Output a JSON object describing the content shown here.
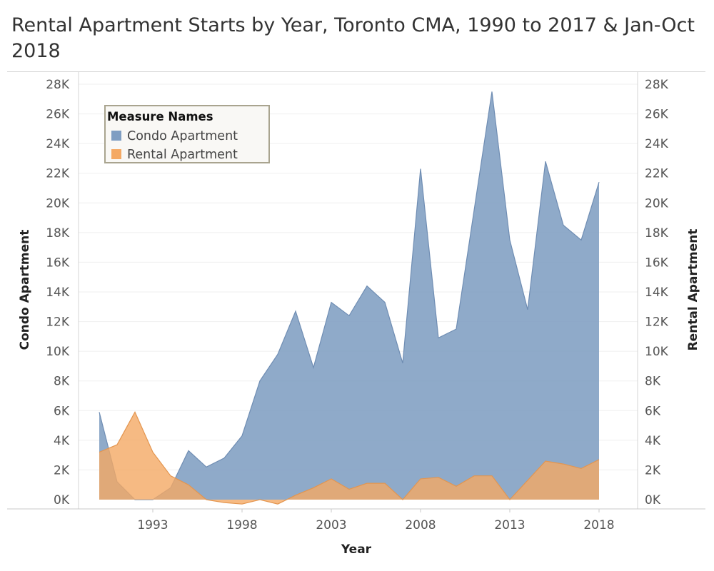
{
  "title": "Rental Apartment Starts by Year, Toronto CMA, 1990 to 2017 & Jan-Oct 2018",
  "chart_data": {
    "type": "area",
    "title": "Rental Apartment Starts by Year, Toronto CMA, 1990 to 2017 & Jan-Oct 2018",
    "xlabel": "Year",
    "ylabel_left": "Condo Apartment",
    "ylabel_right": "Rental Apartment",
    "x": [
      1990,
      1991,
      1992,
      1993,
      1994,
      1995,
      1996,
      1997,
      1998,
      1999,
      2000,
      2001,
      2002,
      2003,
      2004,
      2005,
      2006,
      2007,
      2008,
      2009,
      2010,
      2011,
      2012,
      2013,
      2014,
      2015,
      2016,
      2017,
      2018
    ],
    "x_ticks": [
      "1993",
      "1998",
      "2003",
      "2008",
      "2013",
      "2018"
    ],
    "x_tick_values": [
      1993,
      1998,
      2003,
      2008,
      2013,
      2018
    ],
    "y_ticks": [
      "0K",
      "2K",
      "4K",
      "6K",
      "8K",
      "10K",
      "12K",
      "14K",
      "16K",
      "18K",
      "20K",
      "22K",
      "24K",
      "26K",
      "28K"
    ],
    "ylim": [
      0,
      28000
    ],
    "grid": true,
    "legend": {
      "title": "Measure Names",
      "placement": "top-left",
      "items": [
        "Condo Apartment",
        "Rental Apartment"
      ]
    },
    "series": [
      {
        "name": "Condo Apartment",
        "color": "#7f9ec2",
        "values": [
          5900,
          1200,
          0,
          0,
          800,
          3300,
          2200,
          2800,
          4300,
          8000,
          9800,
          12700,
          8900,
          13300,
          12400,
          14400,
          13300,
          9200,
          22300,
          10900,
          11500,
          19500,
          27500,
          17500,
          12800,
          22800,
          18500,
          17500,
          21400
        ]
      },
      {
        "name": "Rental Apartment",
        "color": "#f4a964",
        "values": [
          3200,
          3700,
          5900,
          3200,
          1600,
          1000,
          0,
          -200,
          -300,
          0,
          -300,
          300,
          800,
          1400,
          700,
          1100,
          1100,
          0,
          1400,
          1500,
          900,
          1600,
          1600,
          0,
          1300,
          2600,
          2400,
          2100,
          2700
        ]
      }
    ]
  }
}
